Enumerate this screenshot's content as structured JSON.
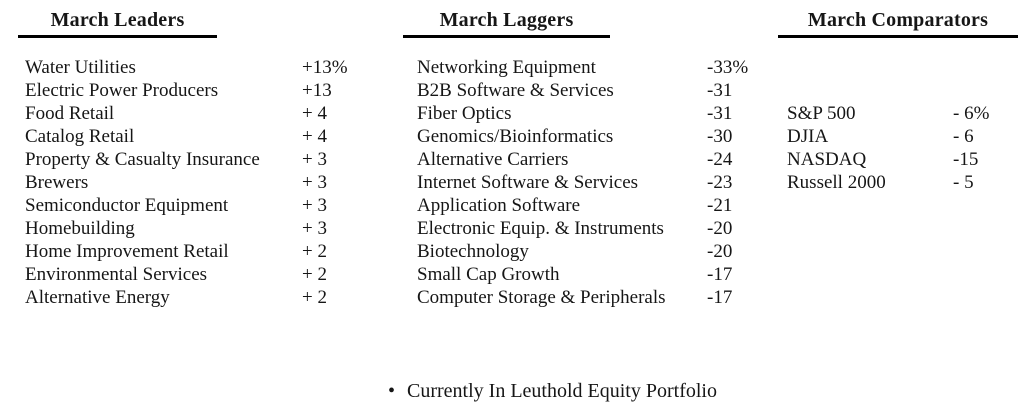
{
  "page": {
    "background_color": "#ffffff",
    "text_color": "#161616",
    "underline_color": "#000000"
  },
  "columns": [
    {
      "title": "March Leaders",
      "rows": [
        {
          "label": "Water Utilities",
          "value": "+13%"
        },
        {
          "label": "Electric Power Producers",
          "value": "+13"
        },
        {
          "label": "Food Retail",
          "value": "+ 4"
        },
        {
          "label": "Catalog Retail",
          "value": "+ 4"
        },
        {
          "label": "Property & Casualty Insurance",
          "value": "+ 3"
        },
        {
          "label": "Brewers",
          "value": "+ 3"
        },
        {
          "label": "Semiconductor Equipment",
          "value": "+ 3"
        },
        {
          "label": "Homebuilding",
          "value": "+ 3"
        },
        {
          "label": "Home Improvement Retail",
          "value": "+ 2"
        },
        {
          "label": "Environmental Services",
          "value": "+ 2"
        },
        {
          "label": "Alternative Energy",
          "value": "+ 2"
        }
      ]
    },
    {
      "title": "March Laggers",
      "rows": [
        {
          "label": "Networking Equipment",
          "value": "-33%"
        },
        {
          "label": "B2B Software & Services",
          "value": "-31"
        },
        {
          "label": "Fiber Optics",
          "value": "-31"
        },
        {
          "label": "Genomics/Bioinformatics",
          "value": "-30"
        },
        {
          "label": "Alternative Carriers",
          "value": "-24"
        },
        {
          "label": "Internet Software & Services",
          "value": "-23"
        },
        {
          "label": "Application Software",
          "value": "-21"
        },
        {
          "label": "Electronic Equip. & Instruments",
          "value": "-20"
        },
        {
          "label": "Biotechnology",
          "value": "-20"
        },
        {
          "label": "Small Cap Growth",
          "value": "-17"
        },
        {
          "label": "Computer Storage & Peripherals",
          "value": "-17"
        }
      ]
    },
    {
      "title": "March Comparators",
      "rows": [
        {
          "label": "S&P 500",
          "value": "- 6%"
        },
        {
          "label": "DJIA",
          "value": "- 6"
        },
        {
          "label": "NASDAQ",
          "value": "-15"
        },
        {
          "label": "Russell 2000",
          "value": "- 5"
        }
      ]
    }
  ],
  "footnote": {
    "bullet": "•",
    "text": "Currently In Leuthold Equity Portfolio"
  }
}
